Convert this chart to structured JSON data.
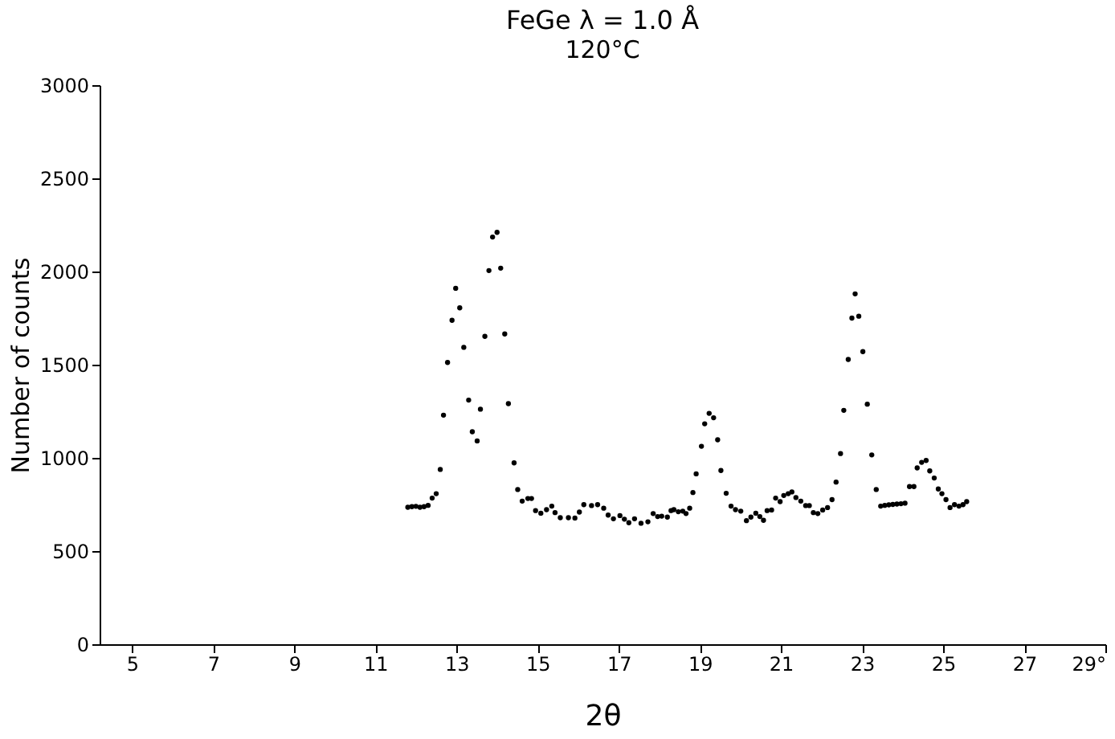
{
  "chart_data": {
    "type": "scatter",
    "title": "FeGe     λ = 1.0 Å",
    "subtitle": "120°C",
    "xlabel": "2θ",
    "ylabel": "Number of counts",
    "x": [
      11.8,
      11.9,
      12.0,
      12.1,
      12.2,
      12.3,
      12.4,
      12.5,
      12.6,
      12.68,
      12.78,
      12.89,
      12.98,
      13.08,
      13.18,
      13.3,
      13.39,
      13.51,
      13.59,
      13.7,
      13.8,
      13.89,
      14.0,
      14.09,
      14.19,
      14.28,
      14.42,
      14.51,
      14.62,
      14.76,
      14.85,
      14.95,
      15.08,
      15.22,
      15.35,
      15.43,
      15.56,
      15.76,
      15.92,
      16.03,
      16.14,
      16.33,
      16.48,
      16.63,
      16.74,
      16.87,
      17.03,
      17.14,
      17.25,
      17.39,
      17.55,
      17.72,
      17.85,
      17.96,
      18.06,
      18.2,
      18.29,
      18.36,
      18.47,
      18.58,
      18.66,
      18.75,
      18.83,
      18.91,
      19.04,
      19.12,
      19.23,
      19.34,
      19.44,
      19.52,
      19.65,
      19.77,
      19.88,
      20.01,
      20.15,
      20.26,
      20.38,
      20.48,
      20.57,
      20.66,
      20.77,
      20.87,
      20.98,
      21.07,
      21.18,
      21.27,
      21.37,
      21.49,
      21.61,
      21.7,
      21.8,
      21.91,
      22.03,
      22.15,
      22.26,
      22.36,
      22.47,
      22.55,
      22.66,
      22.75,
      22.83,
      22.92,
      23.02,
      23.13,
      23.24,
      23.35,
      23.46,
      23.56,
      23.66,
      23.76,
      23.86,
      23.96,
      24.06,
      24.17,
      24.28,
      24.36,
      24.47,
      24.58,
      24.67,
      24.78,
      24.88,
      24.97,
      25.07,
      25.17,
      25.28,
      25.39,
      25.49,
      25.58
    ],
    "series": [
      {
        "color": "#000000",
        "values": [
          735,
          738,
          740,
          735,
          738,
          745,
          784,
          808,
          938,
          1229,
          1512,
          1738,
          1910,
          1805,
          1593,
          1310,
          1140,
          1091,
          1261,
          1652,
          2005,
          2185,
          2210,
          2018,
          1665,
          1291,
          973,
          830,
          768,
          782,
          782,
          717,
          703,
          722,
          741,
          706,
          679,
          679,
          677,
          709,
          749,
          744,
          749,
          730,
          693,
          673,
          690,
          671,
          652,
          673,
          649,
          657,
          701,
          685,
          687,
          682,
          717,
          722,
          711,
          714,
          701,
          730,
          814,
          914,
          1062,
          1183,
          1239,
          1215,
          1097,
          932,
          810,
          741,
          722,
          714,
          663,
          682,
          703,
          685,
          665,
          717,
          720,
          784,
          765,
          798,
          808,
          817,
          787,
          768,
          744,
          744,
          706,
          701,
          720,
          733,
          776,
          870,
          1023,
          1255,
          1528,
          1750,
          1880,
          1760,
          1570,
          1288,
          1016,
          830,
          741,
          745,
          748,
          750,
          752,
          754,
          757,
          846,
          846,
          946,
          976,
          986,
          930,
          892,
          833,
          808,
          776,
          733,
          749,
          741,
          749,
          765
        ]
      }
    ],
    "xlim": [
      4.2,
      29
    ],
    "xticks": [
      5,
      7,
      9,
      11,
      13,
      15,
      17,
      19,
      21,
      23,
      25,
      27,
      {
        "value": 29,
        "label": "29°"
      }
    ],
    "ylim": [
      0,
      3000
    ],
    "yticks": [
      0,
      500,
      1000,
      1500,
      2000,
      2500,
      3000
    ],
    "grid": false,
    "marker": "circle"
  }
}
